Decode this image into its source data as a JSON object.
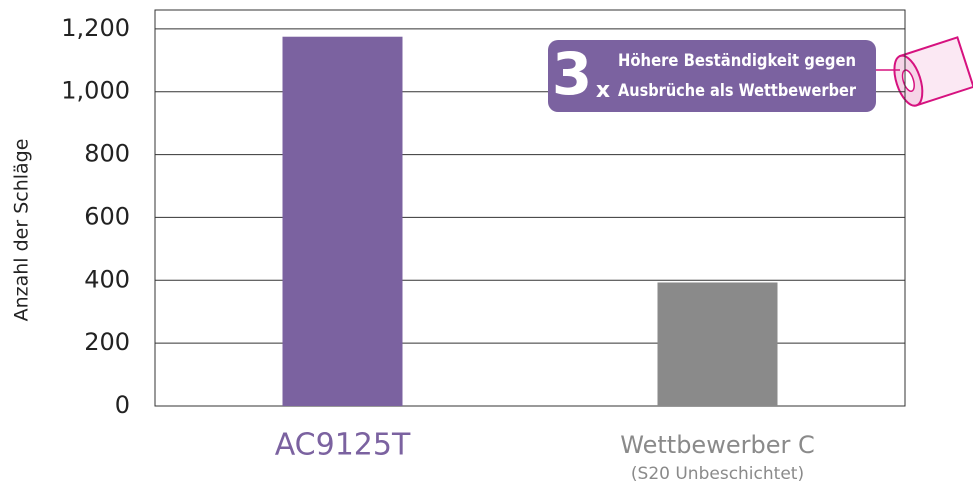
{
  "chart_data": {
    "type": "bar",
    "y_label": "Anzahl der Schläge",
    "categories": [
      "AC9125T",
      "Wettbewerber C"
    ],
    "category_notes": [
      null,
      "(S20 Unbeschichtet)"
    ],
    "category_colors": [
      "#7b62a0",
      "#8a8a8a"
    ],
    "values": [
      1175,
      393
    ],
    "colors": [
      "#7b62a0",
      "#8a8a8a"
    ],
    "ylim": [
      0,
      1260
    ],
    "yticks": [
      0,
      200,
      400,
      600,
      800,
      {
        "value": 1000,
        "label": "1,000"
      },
      {
        "value": 1200,
        "label": "1,200"
      }
    ],
    "grid": true,
    "annotation": {
      "number": "3",
      "multiplier": "x",
      "lines": [
        "Höhere Beständigkeit gegen",
        "Ausbrüche als Wettbewerber"
      ],
      "color": "#7b62a0"
    }
  }
}
